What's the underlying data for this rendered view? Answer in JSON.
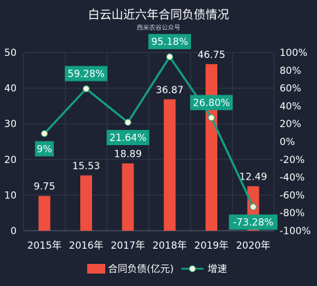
{
  "chart_data": {
    "type": "bar",
    "title": "白云山近六年合同负债情况",
    "subtitle": "西米农谷公众号",
    "categories": [
      "2015年",
      "2016年",
      "2017年",
      "2018年",
      "2019年",
      "2020年"
    ],
    "series": [
      {
        "name": "合同负债(亿元)",
        "type": "bar",
        "axis": "left",
        "color": "#ef4f3e",
        "values": [
          9.75,
          15.53,
          18.89,
          36.87,
          46.75,
          12.49
        ],
        "labels": [
          "9.75",
          "15.53",
          "18.89",
          "36.87",
          "46.75",
          "12.49"
        ]
      },
      {
        "name": "增速",
        "type": "line",
        "axis": "right",
        "color": "#14a085",
        "values": [
          9,
          59.28,
          21.64,
          95.18,
          26.8,
          -73.28
        ],
        "labels": [
          "9%",
          "59.28%",
          "21.64%",
          "95.18%",
          "26.80%",
          "-73.28%"
        ]
      }
    ],
    "y_left": {
      "min": 0,
      "max": 50,
      "ticks": [
        "0",
        "10",
        "20",
        "30",
        "40",
        "50"
      ]
    },
    "y_right": {
      "min": -100,
      "max": 100,
      "ticks": [
        "-100%",
        "-80%",
        "-60%",
        "-40%",
        "-20%",
        "0%",
        "20%",
        "40%",
        "60%",
        "80%",
        "100%"
      ]
    },
    "grid": true,
    "legend_position": "bottom"
  }
}
